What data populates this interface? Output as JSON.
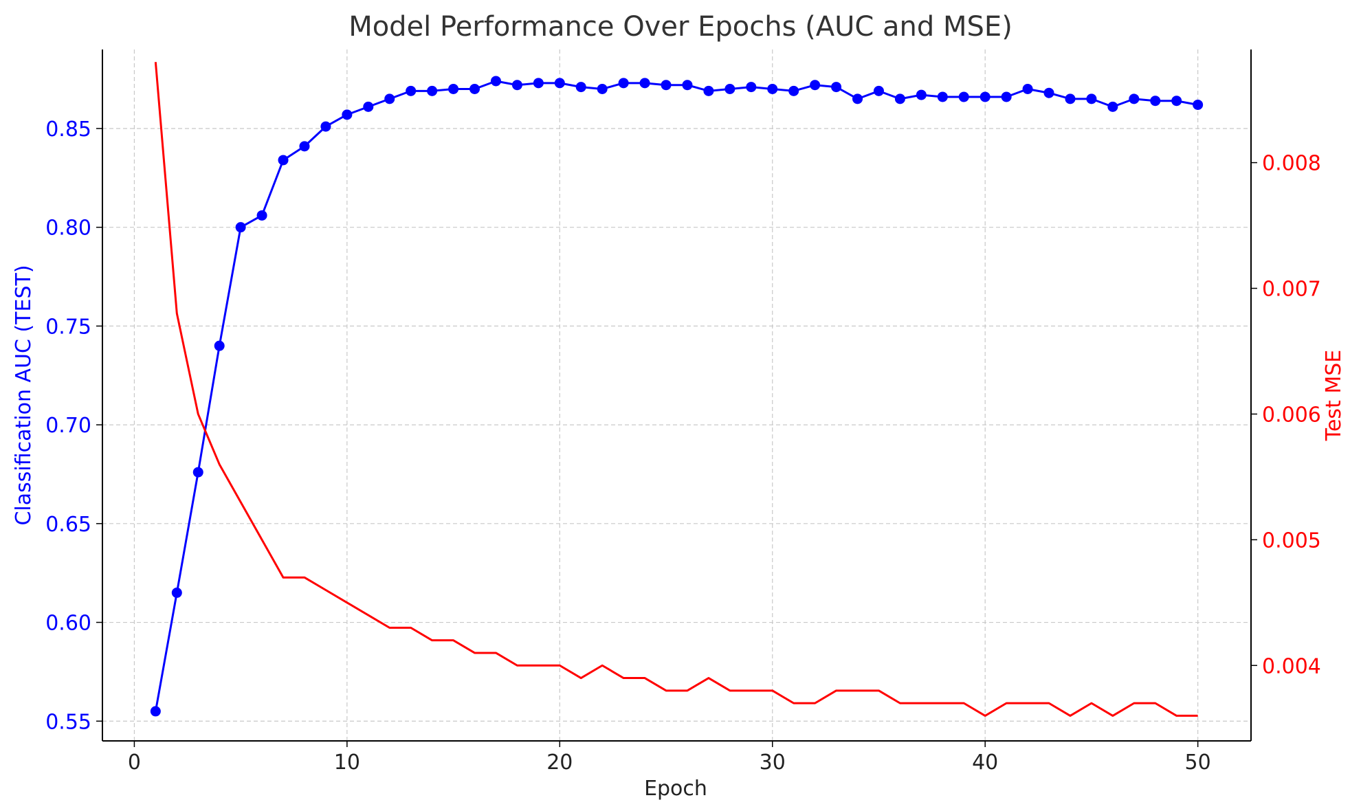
{
  "chart_data": {
    "type": "line",
    "title": "Model Performance Over Epochs (AUC and MSE)",
    "xlabel": "Epoch",
    "ylabel_left": "Classification AUC (TEST)",
    "ylabel_right": "Test MSE",
    "xlim": [
      -1.5,
      52.5
    ],
    "ylim_left": [
      0.54,
      0.89
    ],
    "ylim_right": [
      0.0034,
      0.0089
    ],
    "x_ticks": [
      0,
      10,
      20,
      30,
      40,
      50
    ],
    "x_tick_labels": [
      "0",
      "10",
      "20",
      "30",
      "40",
      "50"
    ],
    "y_left_ticks": [
      0.55,
      0.6,
      0.65,
      0.7,
      0.75,
      0.8,
      0.85
    ],
    "y_left_tick_labels": [
      "0.55",
      "0.60",
      "0.65",
      "0.70",
      "0.75",
      "0.80",
      "0.85"
    ],
    "y_right_ticks": [
      0.004,
      0.005,
      0.006,
      0.007,
      0.008
    ],
    "y_right_tick_labels": [
      "0.004",
      "0.005",
      "0.006",
      "0.007",
      "0.008"
    ],
    "grid": true,
    "x": [
      1,
      2,
      3,
      4,
      5,
      6,
      7,
      8,
      9,
      10,
      11,
      12,
      13,
      14,
      15,
      16,
      17,
      18,
      19,
      20,
      21,
      22,
      23,
      24,
      25,
      26,
      27,
      28,
      29,
      30,
      31,
      32,
      33,
      34,
      35,
      36,
      37,
      38,
      39,
      40,
      41,
      42,
      43,
      44,
      45,
      46,
      47,
      48,
      49,
      50
    ],
    "series": [
      {
        "axis": "left",
        "color": "#0000ff",
        "marker": "circle",
        "values": [
          0.555,
          0.615,
          0.676,
          0.74,
          0.8,
          0.806,
          0.834,
          0.841,
          0.851,
          0.857,
          0.861,
          0.865,
          0.869,
          0.869,
          0.87,
          0.87,
          0.874,
          0.872,
          0.873,
          0.873,
          0.871,
          0.87,
          0.873,
          0.873,
          0.872,
          0.872,
          0.869,
          0.87,
          0.871,
          0.87,
          0.869,
          0.872,
          0.871,
          0.865,
          0.869,
          0.865,
          0.867,
          0.866,
          0.866,
          0.866,
          0.866,
          0.87,
          0.868,
          0.865,
          0.865,
          0.861,
          0.865,
          0.864,
          0.864,
          0.862
        ]
      },
      {
        "axis": "right",
        "color": "#ff0000",
        "marker": "none",
        "values": [
          0.0088,
          0.0068,
          0.006,
          0.0056,
          0.0053,
          0.005,
          0.0047,
          0.0047,
          0.0046,
          0.0045,
          0.0044,
          0.0043,
          0.0043,
          0.0042,
          0.0042,
          0.0041,
          0.0041,
          0.004,
          0.004,
          0.004,
          0.0039,
          0.004,
          0.0039,
          0.0039,
          0.0038,
          0.0038,
          0.0039,
          0.0038,
          0.0038,
          0.0038,
          0.0037,
          0.0037,
          0.0038,
          0.0038,
          0.0038,
          0.0037,
          0.0037,
          0.0037,
          0.0037,
          0.0036,
          0.0037,
          0.0037,
          0.0037,
          0.0036,
          0.0037,
          0.0036,
          0.0037,
          0.0037,
          0.0036,
          0.0036
        ]
      }
    ],
    "colors": {
      "left_axis": "#0000ff",
      "right_axis": "#ff0000",
      "title": "#333333",
      "grid": "#c8c8c8"
    }
  }
}
